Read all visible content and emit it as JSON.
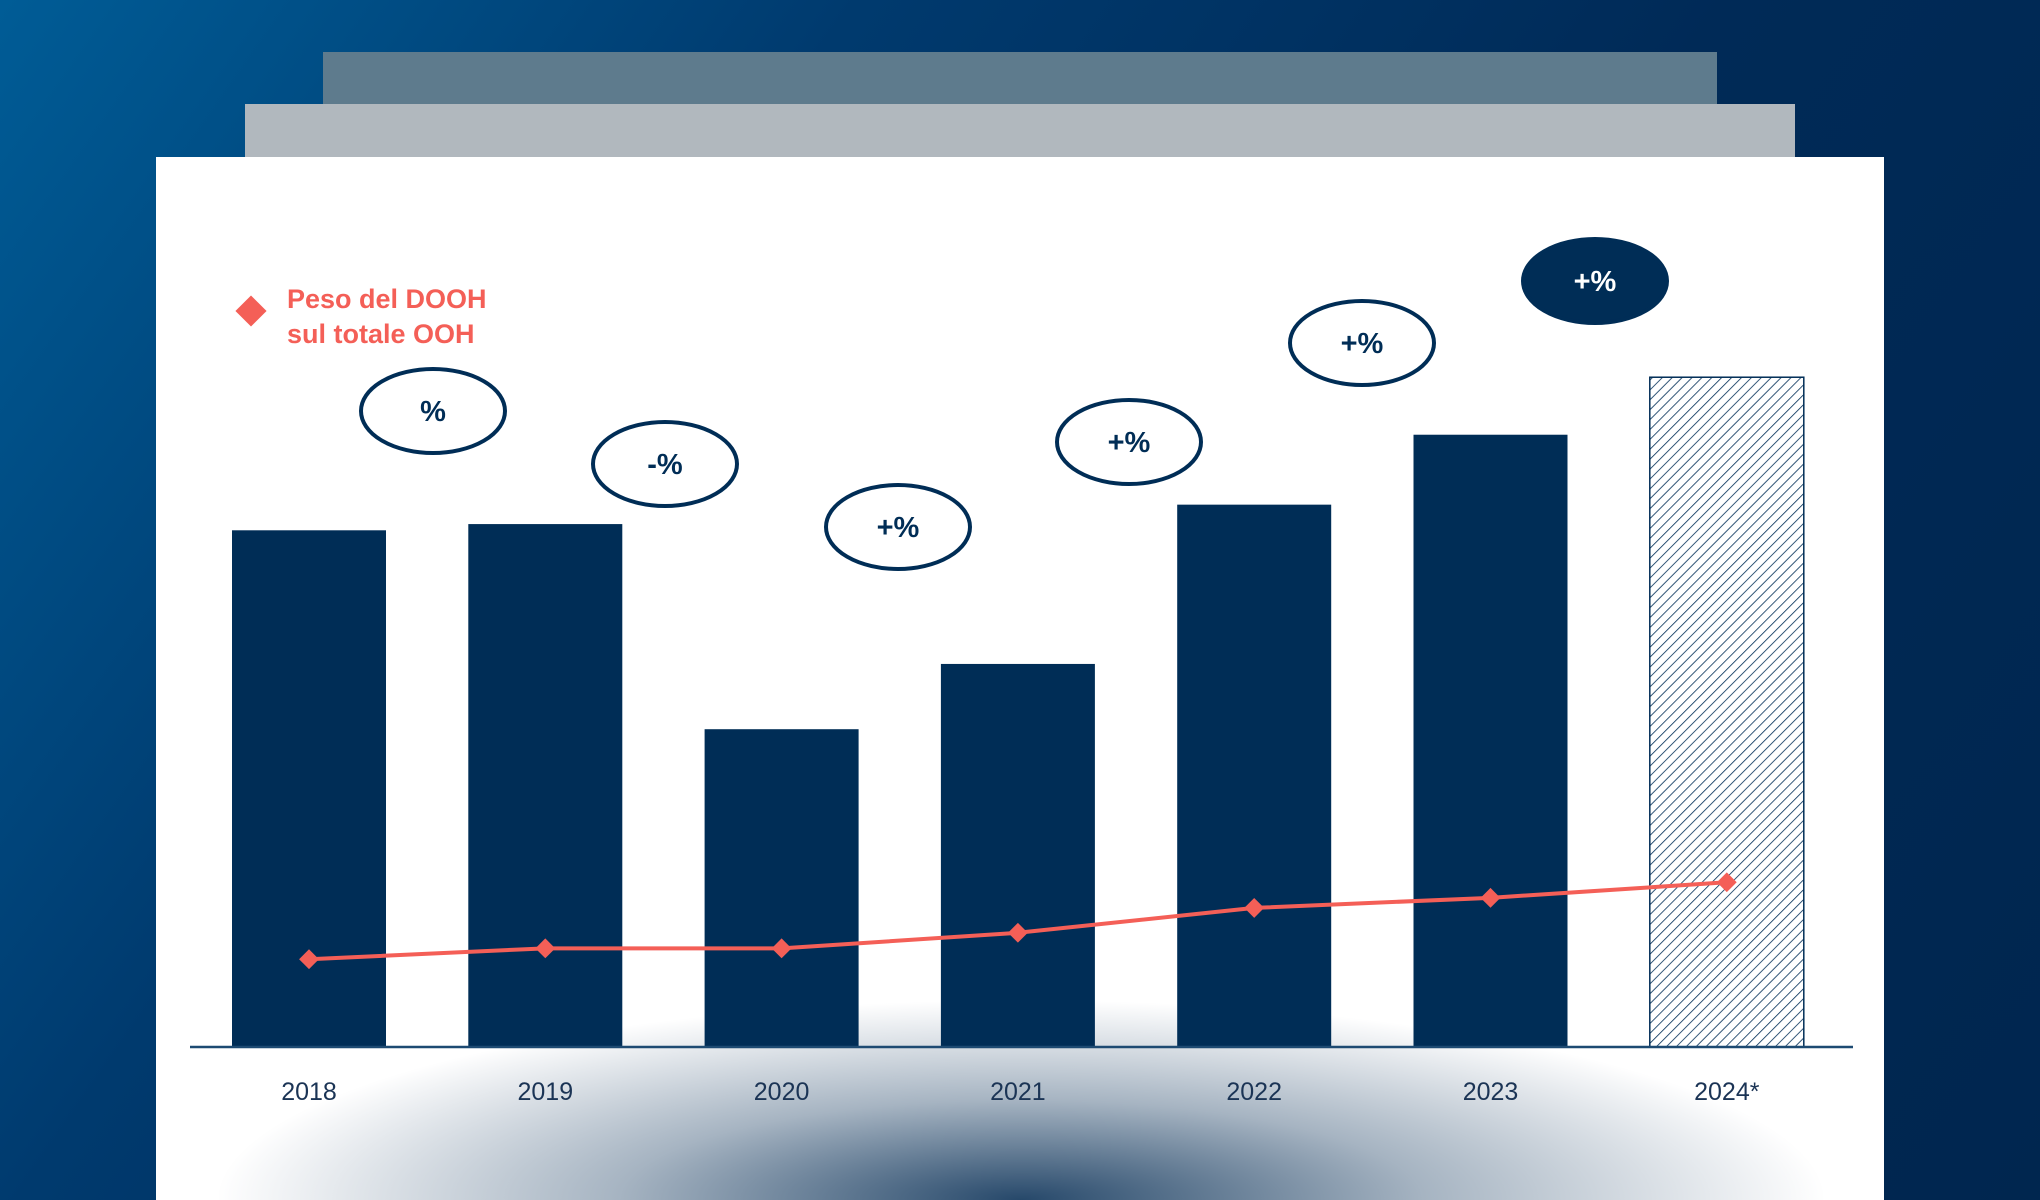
{
  "chart_data": {
    "type": "bar",
    "categories": [
      "2018",
      "2019",
      "2020",
      "2021",
      "2022",
      "2023",
      "2024*"
    ],
    "series": [
      {
        "type": "bar",
        "values": [
          66.5,
          67.3,
          40.9,
          49.3,
          69.8,
          78.8,
          86.2
        ],
        "projected": [
          false,
          false,
          false,
          false,
          false,
          false,
          true
        ]
      },
      {
        "type": "line",
        "name": "Peso del DOOH sul totale OOH",
        "values": [
          11.3,
          12.7,
          12.7,
          14.7,
          17.9,
          19.2,
          21.2
        ]
      }
    ],
    "ylim": [
      0,
      100
    ],
    "grid": false,
    "legend": {
      "position": "top-left",
      "label_line1": "Peso del DOOH",
      "label_line2": "sul totale OOH"
    },
    "annotations": [
      "%",
      "-%",
      "+%",
      "+%",
      "+%",
      "+%"
    ],
    "colors": {
      "bar": "#002d56",
      "line": "#f45f57",
      "projected_hatch": "#002d56"
    }
  }
}
